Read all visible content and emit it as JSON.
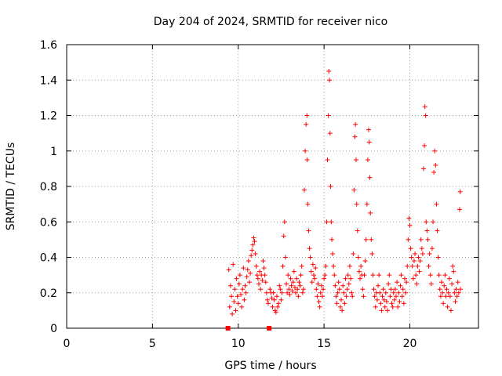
{
  "chart_data": {
    "type": "scatter",
    "title": "Day 204 of 2024, SRMTID for receiver nico",
    "xlabel": "GPS time / hours",
    "ylabel": "SRMTID / TECUs",
    "xlim": [
      0,
      24
    ],
    "ylim": [
      0,
      1.6
    ],
    "xticks": [
      0,
      5,
      10,
      15,
      20
    ],
    "xtick_labels": [
      "0",
      "5",
      "10",
      "15",
      "20"
    ],
    "yticks": [
      0,
      0.2,
      0.4,
      0.6,
      0.8,
      1.0,
      1.2,
      1.4,
      1.6
    ],
    "ytick_labels": [
      "0",
      "0.2",
      "0.4",
      "0.6",
      "0.8",
      "1",
      "1.2",
      "1.4",
      "1.6"
    ],
    "grid": true,
    "marker": "plus",
    "color": "#ff0000",
    "zero_markers": [
      {
        "x": 9.4,
        "y": 0.0
      },
      {
        "x": 11.8,
        "y": 0.0
      }
    ],
    "series": [
      {
        "name": "SRMTID",
        "points": [
          [
            9.45,
            0.33
          ],
          [
            9.5,
            0.12
          ],
          [
            9.55,
            0.24
          ],
          [
            9.6,
            0.18
          ],
          [
            9.65,
            0.08
          ],
          [
            9.7,
            0.36
          ],
          [
            9.75,
            0.15
          ],
          [
            9.8,
            0.22
          ],
          [
            9.85,
            0.1
          ],
          [
            9.9,
            0.28
          ],
          [
            9.95,
            0.18
          ],
          [
            10.0,
            0.14
          ],
          [
            10.05,
            0.25
          ],
          [
            10.1,
            0.3
          ],
          [
            10.15,
            0.19
          ],
          [
            10.2,
            0.12
          ],
          [
            10.25,
            0.22
          ],
          [
            10.3,
            0.34
          ],
          [
            10.35,
            0.16
          ],
          [
            10.4,
            0.24
          ],
          [
            10.45,
            0.2
          ],
          [
            10.5,
            0.29
          ],
          [
            10.55,
            0.33
          ],
          [
            10.6,
            0.38
          ],
          [
            10.65,
            0.26
          ],
          [
            10.7,
            0.31
          ],
          [
            10.75,
            0.41
          ],
          [
            10.8,
            0.44
          ],
          [
            10.85,
            0.47
          ],
          [
            10.9,
            0.51
          ],
          [
            10.95,
            0.49
          ],
          [
            11.0,
            0.42
          ],
          [
            11.05,
            0.35
          ],
          [
            11.1,
            0.3
          ],
          [
            11.15,
            0.28
          ],
          [
            11.2,
            0.25
          ],
          [
            11.25,
            0.32
          ],
          [
            11.3,
            0.22
          ],
          [
            11.35,
            0.3
          ],
          [
            11.4,
            0.27
          ],
          [
            11.45,
            0.38
          ],
          [
            11.5,
            0.34
          ],
          [
            11.55,
            0.3
          ],
          [
            11.6,
            0.26
          ],
          [
            11.65,
            0.2
          ],
          [
            11.7,
            0.16
          ],
          [
            11.75,
            0.14
          ],
          [
            11.85,
            0.22
          ],
          [
            11.9,
            0.2
          ],
          [
            11.95,
            0.17
          ],
          [
            12.0,
            0.12
          ],
          [
            12.05,
            0.2
          ],
          [
            12.1,
            0.16
          ],
          [
            12.15,
            0.1
          ],
          [
            12.2,
            0.09
          ],
          [
            12.25,
            0.18
          ],
          [
            12.3,
            0.12
          ],
          [
            12.35,
            0.14
          ],
          [
            12.4,
            0.24
          ],
          [
            12.45,
            0.22
          ],
          [
            12.5,
            0.16
          ],
          [
            12.55,
            0.2
          ],
          [
            12.6,
            0.35
          ],
          [
            12.65,
            0.52
          ],
          [
            12.7,
            0.6
          ],
          [
            12.75,
            0.4
          ],
          [
            12.8,
            0.25
          ],
          [
            12.85,
            0.2
          ],
          [
            12.9,
            0.3
          ],
          [
            12.95,
            0.22
          ],
          [
            13.0,
            0.19
          ],
          [
            13.05,
            0.28
          ],
          [
            13.1,
            0.24
          ],
          [
            13.15,
            0.21
          ],
          [
            13.2,
            0.26
          ],
          [
            13.25,
            0.32
          ],
          [
            13.3,
            0.23
          ],
          [
            13.35,
            0.2
          ],
          [
            13.4,
            0.28
          ],
          [
            13.45,
            0.22
          ],
          [
            13.5,
            0.18
          ],
          [
            13.55,
            0.26
          ],
          [
            13.6,
            0.24
          ],
          [
            13.65,
            0.3
          ],
          [
            13.7,
            0.35
          ],
          [
            13.75,
            0.2
          ],
          [
            13.8,
            0.22
          ],
          [
            13.85,
            0.78
          ],
          [
            13.9,
            1.0
          ],
          [
            13.95,
            1.15
          ],
          [
            14.0,
            1.2
          ],
          [
            14.02,
            0.95
          ],
          [
            14.05,
            0.7
          ],
          [
            14.1,
            0.55
          ],
          [
            14.15,
            0.45
          ],
          [
            14.2,
            0.4
          ],
          [
            14.25,
            0.32
          ],
          [
            14.3,
            0.26
          ],
          [
            14.35,
            0.36
          ],
          [
            14.4,
            0.3
          ],
          [
            14.45,
            0.28
          ],
          [
            14.5,
            0.34
          ],
          [
            14.55,
            0.22
          ],
          [
            14.6,
            0.18
          ],
          [
            14.65,
            0.25
          ],
          [
            14.7,
            0.15
          ],
          [
            14.75,
            0.12
          ],
          [
            14.8,
            0.2
          ],
          [
            14.85,
            0.24
          ],
          [
            14.9,
            0.18
          ],
          [
            14.95,
            0.22
          ],
          [
            15.0,
            0.28
          ],
          [
            15.05,
            0.3
          ],
          [
            15.1,
            0.35
          ],
          [
            15.15,
            0.6
          ],
          [
            15.2,
            0.95
          ],
          [
            15.25,
            1.2
          ],
          [
            15.28,
            1.45
          ],
          [
            15.32,
            1.4
          ],
          [
            15.35,
            1.1
          ],
          [
            15.38,
            0.8
          ],
          [
            15.42,
            0.6
          ],
          [
            15.45,
            0.5
          ],
          [
            15.5,
            0.42
          ],
          [
            15.55,
            0.35
          ],
          [
            15.6,
            0.3
          ],
          [
            15.65,
            0.24
          ],
          [
            15.7,
            0.18
          ],
          [
            15.75,
            0.14
          ],
          [
            15.8,
            0.2
          ],
          [
            15.85,
            0.26
          ],
          [
            15.9,
            0.22
          ],
          [
            15.95,
            0.12
          ],
          [
            16.0,
            0.16
          ],
          [
            16.05,
            0.1
          ],
          [
            16.1,
            0.24
          ],
          [
            16.15,
            0.2
          ],
          [
            16.2,
            0.14
          ],
          [
            16.25,
            0.28
          ],
          [
            16.3,
            0.18
          ],
          [
            16.35,
            0.22
          ],
          [
            16.4,
            0.3
          ],
          [
            16.45,
            0.25
          ],
          [
            16.5,
            0.35
          ],
          [
            16.55,
            0.28
          ],
          [
            16.6,
            0.2
          ],
          [
            16.65,
            0.18
          ],
          [
            16.7,
            0.42
          ],
          [
            16.75,
            0.78
          ],
          [
            16.8,
            1.08
          ],
          [
            16.83,
            1.15
          ],
          [
            16.87,
            0.95
          ],
          [
            16.9,
            0.7
          ],
          [
            16.95,
            0.55
          ],
          [
            17.0,
            0.4
          ],
          [
            17.05,
            0.32
          ],
          [
            17.1,
            0.28
          ],
          [
            17.15,
            0.35
          ],
          [
            17.2,
            0.3
          ],
          [
            17.25,
            0.22
          ],
          [
            17.3,
            0.18
          ],
          [
            17.35,
            0.3
          ],
          [
            17.4,
            0.38
          ],
          [
            17.45,
            0.5
          ],
          [
            17.5,
            0.7
          ],
          [
            17.55,
            0.95
          ],
          [
            17.6,
            1.12
          ],
          [
            17.63,
            1.05
          ],
          [
            17.67,
            0.85
          ],
          [
            17.7,
            0.65
          ],
          [
            17.75,
            0.5
          ],
          [
            17.8,
            0.42
          ],
          [
            17.85,
            0.3
          ],
          [
            17.9,
            0.22
          ],
          [
            17.95,
            0.18
          ],
          [
            18.0,
            0.12
          ],
          [
            18.05,
            0.2
          ],
          [
            18.1,
            0.16
          ],
          [
            18.15,
            0.24
          ],
          [
            18.2,
            0.3
          ],
          [
            18.25,
            0.2
          ],
          [
            18.3,
            0.14
          ],
          [
            18.35,
            0.1
          ],
          [
            18.4,
            0.18
          ],
          [
            18.45,
            0.22
          ],
          [
            18.5,
            0.16
          ],
          [
            18.55,
            0.12
          ],
          [
            18.6,
            0.2
          ],
          [
            18.65,
            0.15
          ],
          [
            18.7,
            0.1
          ],
          [
            18.75,
            0.25
          ],
          [
            18.8,
            0.3
          ],
          [
            18.85,
            0.18
          ],
          [
            18.9,
            0.22
          ],
          [
            18.95,
            0.14
          ],
          [
            19.0,
            0.12
          ],
          [
            19.05,
            0.2
          ],
          [
            19.1,
            0.16
          ],
          [
            19.15,
            0.22
          ],
          [
            19.2,
            0.18
          ],
          [
            19.25,
            0.26
          ],
          [
            19.3,
            0.12
          ],
          [
            19.35,
            0.2
          ],
          [
            19.4,
            0.15
          ],
          [
            19.45,
            0.24
          ],
          [
            19.5,
            0.3
          ],
          [
            19.55,
            0.18
          ],
          [
            19.6,
            0.22
          ],
          [
            19.65,
            0.14
          ],
          [
            19.7,
            0.28
          ],
          [
            19.75,
            0.2
          ],
          [
            19.8,
            0.26
          ],
          [
            19.85,
            0.35
          ],
          [
            19.9,
            0.5
          ],
          [
            19.95,
            0.62
          ],
          [
            20.0,
            0.58
          ],
          [
            20.05,
            0.45
          ],
          [
            20.1,
            0.4
          ],
          [
            20.15,
            0.35
          ],
          [
            20.2,
            0.28
          ],
          [
            20.25,
            0.38
          ],
          [
            20.3,
            0.42
          ],
          [
            20.35,
            0.3
          ],
          [
            20.4,
            0.25
          ],
          [
            20.45,
            0.35
          ],
          [
            20.5,
            0.4
          ],
          [
            20.55,
            0.32
          ],
          [
            20.6,
            0.38
          ],
          [
            20.65,
            0.5
          ],
          [
            20.7,
            0.45
          ],
          [
            20.75,
            0.42
          ],
          [
            20.8,
            0.9
          ],
          [
            20.85,
            1.03
          ],
          [
            20.88,
            1.25
          ],
          [
            20.92,
            1.2
          ],
          [
            20.95,
            0.6
          ],
          [
            21.0,
            0.55
          ],
          [
            21.05,
            0.5
          ],
          [
            21.1,
            0.35
          ],
          [
            21.15,
            0.42
          ],
          [
            21.2,
            0.3
          ],
          [
            21.25,
            0.25
          ],
          [
            21.3,
            0.45
          ],
          [
            21.35,
            0.6
          ],
          [
            21.4,
            0.88
          ],
          [
            21.45,
            1.0
          ],
          [
            21.5,
            0.92
          ],
          [
            21.55,
            0.7
          ],
          [
            21.6,
            0.55
          ],
          [
            21.65,
            0.4
          ],
          [
            21.7,
            0.3
          ],
          [
            21.75,
            0.22
          ],
          [
            21.8,
            0.18
          ],
          [
            21.85,
            0.26
          ],
          [
            21.9,
            0.2
          ],
          [
            21.95,
            0.14
          ],
          [
            22.0,
            0.24
          ],
          [
            22.05,
            0.3
          ],
          [
            22.1,
            0.18
          ],
          [
            22.15,
            0.22
          ],
          [
            22.2,
            0.12
          ],
          [
            22.25,
            0.2
          ],
          [
            22.3,
            0.28
          ],
          [
            22.35,
            0.18
          ],
          [
            22.4,
            0.1
          ],
          [
            22.45,
            0.25
          ],
          [
            22.5,
            0.35
          ],
          [
            22.55,
            0.32
          ],
          [
            22.6,
            0.2
          ],
          [
            22.65,
            0.15
          ],
          [
            22.7,
            0.22
          ],
          [
            22.75,
            0.18
          ],
          [
            22.8,
            0.26
          ],
          [
            22.85,
            0.2
          ],
          [
            22.9,
            0.67
          ],
          [
            22.93,
            0.77
          ],
          [
            22.95,
            0.22
          ]
        ]
      }
    ]
  }
}
